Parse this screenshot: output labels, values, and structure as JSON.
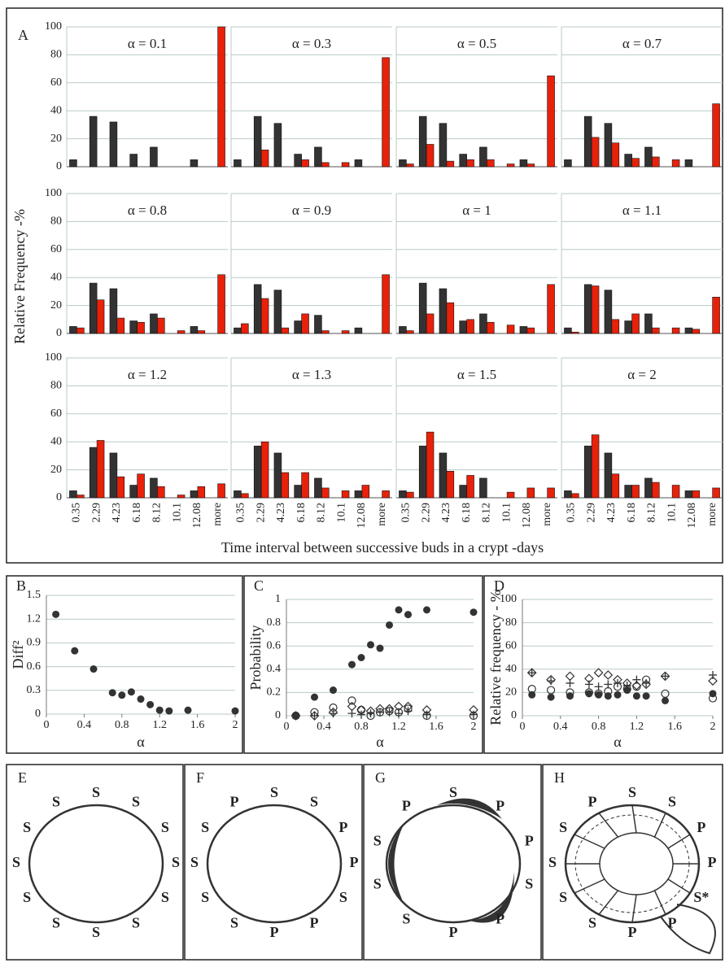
{
  "chart_data": [
    {
      "type": "bar",
      "panel_label": "A",
      "ylabel": "Relative Frequency -%",
      "xlabel": "Time interval between successive buds in a crypt -days",
      "categories": [
        "0.35",
        "2.29",
        "4.23",
        "6.18",
        "8.12",
        "10.1",
        "12.08",
        "more"
      ],
      "ylim": [
        0,
        100
      ],
      "yticks": [
        0,
        20,
        40,
        60,
        80,
        100
      ],
      "grid": true,
      "panels": [
        {
          "title": "α = 0.1",
          "series": [
            {
              "color": "#333333",
              "values": [
                5,
                36,
                32,
                9,
                14,
                0,
                5,
                0
              ]
            },
            {
              "color": "#e8210b",
              "values": [
                0,
                0,
                0,
                0,
                0,
                0,
                0,
                100
              ]
            }
          ]
        },
        {
          "title": "α = 0.3",
          "series": [
            {
              "color": "#333333",
              "values": [
                5,
                36,
                31,
                9,
                14,
                0,
                5,
                0
              ]
            },
            {
              "color": "#e8210b",
              "values": [
                0,
                12,
                0,
                5,
                3,
                3,
                0,
                78
              ]
            }
          ]
        },
        {
          "title": "α = 0.5",
          "series": [
            {
              "color": "#333333",
              "values": [
                5,
                36,
                31,
                9,
                14,
                0,
                5,
                0
              ]
            },
            {
              "color": "#e8210b",
              "values": [
                2,
                16,
                4,
                5,
                5,
                2,
                2,
                65
              ]
            }
          ]
        },
        {
          "title": "α = 0.7",
          "series": [
            {
              "color": "#333333",
              "values": [
                5,
                36,
                31,
                9,
                14,
                0,
                5,
                0
              ]
            },
            {
              "color": "#e8210b",
              "values": [
                0,
                21,
                17,
                6,
                7,
                5,
                0,
                45
              ]
            }
          ]
        },
        {
          "title": "α = 0.8",
          "series": [
            {
              "color": "#333333",
              "values": [
                5,
                36,
                32,
                9,
                14,
                0,
                5,
                0
              ]
            },
            {
              "color": "#e8210b",
              "values": [
                4,
                24,
                11,
                8,
                11,
                2,
                2,
                42
              ]
            }
          ]
        },
        {
          "title": "α = 0.9",
          "series": [
            {
              "color": "#333333",
              "values": [
                4,
                35,
                31,
                9,
                13,
                0,
                4,
                0
              ]
            },
            {
              "color": "#e8210b",
              "values": [
                7,
                25,
                4,
                14,
                2,
                2,
                0,
                42
              ]
            }
          ]
        },
        {
          "title": "α = 1",
          "series": [
            {
              "color": "#333333",
              "values": [
                5,
                36,
                32,
                9,
                14,
                0,
                5,
                0
              ]
            },
            {
              "color": "#e8210b",
              "values": [
                2,
                14,
                22,
                10,
                8,
                6,
                4,
                35
              ]
            }
          ]
        },
        {
          "title": "α = 1.1",
          "series": [
            {
              "color": "#333333",
              "values": [
                4,
                35,
                31,
                9,
                14,
                0,
                4,
                0
              ]
            },
            {
              "color": "#e8210b",
              "values": [
                1,
                34,
                10,
                14,
                4,
                4,
                3,
                26
              ]
            }
          ]
        },
        {
          "title": "α = 1.2",
          "series": [
            {
              "color": "#333333",
              "values": [
                5,
                36,
                32,
                9,
                14,
                0,
                5,
                0
              ]
            },
            {
              "color": "#e8210b",
              "values": [
                2,
                41,
                15,
                17,
                8,
                2,
                8,
                10
              ]
            }
          ]
        },
        {
          "title": "α = 1.3",
          "series": [
            {
              "color": "#333333",
              "values": [
                5,
                37,
                32,
                9,
                14,
                0,
                5,
                0
              ]
            },
            {
              "color": "#e8210b",
              "values": [
                3,
                40,
                18,
                18,
                7,
                5,
                9,
                5
              ]
            }
          ]
        },
        {
          "title": "α = 1.5",
          "series": [
            {
              "color": "#333333",
              "values": [
                5,
                37,
                32,
                9,
                14,
                0,
                0,
                0
              ]
            },
            {
              "color": "#e8210b",
              "values": [
                4,
                47,
                19,
                16,
                0,
                4,
                7,
                7
              ]
            }
          ]
        },
        {
          "title": "α = 2",
          "series": [
            {
              "color": "#333333",
              "values": [
                5,
                37,
                32,
                9,
                14,
                0,
                5,
                0
              ]
            },
            {
              "color": "#e8210b",
              "values": [
                3,
                45,
                17,
                9,
                11,
                9,
                5,
                7
              ]
            }
          ]
        }
      ]
    },
    {
      "type": "scatter",
      "panel_label": "B",
      "ylabel": "Diff²",
      "xlabel": "α",
      "x": [
        0.1,
        0.3,
        0.5,
        0.7,
        0.8,
        0.9,
        1.0,
        1.1,
        1.2,
        1.3,
        1.5,
        2
      ],
      "xlim": [
        0,
        2
      ],
      "xticks": [
        0,
        0.4,
        0.8,
        1.2,
        1.6,
        2
      ],
      "ylim": [
        0,
        1.5
      ],
      "yticks": [
        0,
        0.3,
        0.6,
        0.9,
        1.2,
        1.5
      ],
      "grid": true,
      "series": [
        {
          "marker": "filled-circle",
          "color": "#333333",
          "values": [
            1.26,
            0.8,
            0.57,
            0.27,
            0.24,
            0.28,
            0.19,
            0.12,
            0.05,
            0.04,
            0.05,
            0.04
          ]
        }
      ]
    },
    {
      "type": "scatter",
      "panel_label": "C",
      "ylabel": "Probability",
      "xlabel": "α",
      "x": [
        0.1,
        0.3,
        0.5,
        0.7,
        0.8,
        0.9,
        1.0,
        1.1,
        1.2,
        1.3,
        1.5,
        2
      ],
      "xlim": [
        0,
        2
      ],
      "xticks": [
        0,
        0.4,
        0.8,
        1.2,
        1.6,
        2
      ],
      "ylim": [
        0,
        1
      ],
      "yticks": [
        0,
        0.2,
        0.4,
        0.6,
        0.8,
        1
      ],
      "grid": true,
      "series": [
        {
          "marker": "filled-circle",
          "color": "#333333",
          "values": [
            0,
            0.16,
            0.22,
            0.44,
            0.5,
            0.61,
            0.58,
            0.78,
            0.91,
            0.87,
            0.91,
            0.89
          ]
        },
        {
          "marker": "open-circle",
          "color": "#333333",
          "values": [
            0,
            0.03,
            0.07,
            0.13,
            0.05,
            0,
            0.03,
            0.04,
            0.03,
            0.06,
            0,
            0
          ]
        },
        {
          "marker": "diamond",
          "color": "#333333",
          "values": [
            0,
            0,
            0.03,
            0.08,
            0.05,
            0.04,
            0.06,
            0.06,
            0.08,
            0.08,
            0.05,
            0.05
          ]
        },
        {
          "marker": "plus",
          "color": "#333333",
          "values": [
            0,
            0,
            0.02,
            0.02,
            0.01,
            0.02,
            0.03,
            0.03,
            0.02,
            0.04,
            0.01,
            0.01
          ]
        }
      ]
    },
    {
      "type": "scatter",
      "panel_label": "D",
      "ylabel": "Relative frequency - %",
      "xlabel": "α",
      "x": [
        0.1,
        0.3,
        0.5,
        0.7,
        0.8,
        0.9,
        1.0,
        1.1,
        1.2,
        1.3,
        1.5,
        2
      ],
      "xlim": [
        0,
        2
      ],
      "xticks": [
        0,
        0.4,
        0.8,
        1.2,
        1.6,
        2
      ],
      "ylim": [
        0,
        100
      ],
      "yticks": [
        0,
        20,
        40,
        60,
        80,
        100
      ],
      "grid": true,
      "series": [
        {
          "marker": "filled-circle",
          "color": "#333333",
          "values": [
            18,
            16,
            17,
            19,
            18,
            17,
            18,
            22,
            17,
            17,
            13,
            19
          ]
        },
        {
          "marker": "open-circle",
          "color": "#333333",
          "values": [
            23,
            22,
            20,
            20,
            19,
            21,
            25,
            23,
            25,
            31,
            19,
            15
          ]
        },
        {
          "marker": "diamond",
          "color": "#333333",
          "values": [
            37,
            31,
            34,
            32,
            37,
            35,
            31,
            28,
            26,
            27,
            34,
            30
          ]
        },
        {
          "marker": "plus",
          "color": "#333333",
          "values": [
            37,
            30,
            28,
            27,
            25,
            27,
            28,
            26,
            31,
            28,
            34,
            35
          ]
        }
      ]
    }
  ],
  "diagrams": [
    {
      "label": "E",
      "nodes": [
        "S",
        "S",
        "S",
        "S",
        "S",
        "S",
        "S",
        "S",
        "S",
        "S",
        "S",
        "S"
      ]
    },
    {
      "label": "F",
      "nodes": [
        "S",
        "S",
        "P",
        "P",
        "S",
        "P",
        "P",
        "S",
        "S",
        "S",
        "S",
        "P"
      ]
    },
    {
      "label": "G",
      "nodes": [
        "S",
        "P",
        "P",
        "S",
        "P",
        "P",
        "S",
        "S",
        "S",
        "P"
      ]
    },
    {
      "label": "H",
      "nodes": [
        "S",
        "S",
        "P",
        "P",
        "S*",
        "P",
        "P",
        "S",
        "S",
        "S",
        "S",
        "P"
      ]
    }
  ]
}
